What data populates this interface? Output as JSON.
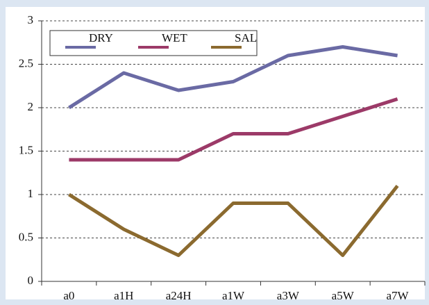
{
  "chart_data": {
    "type": "line",
    "categories": [
      "a0",
      "a1H",
      "a24H",
      "a1W",
      "a3W",
      "a5W",
      "a7W"
    ],
    "series": [
      {
        "name": "DRY",
        "color": "#6a6aa4",
        "values": [
          2.0,
          2.4,
          2.2,
          2.3,
          2.6,
          2.7,
          2.6
        ]
      },
      {
        "name": "WET",
        "color": "#9c3a68",
        "values": [
          1.4,
          1.4,
          1.4,
          1.7,
          1.7,
          1.9,
          2.1
        ]
      },
      {
        "name": "SAL",
        "color": "#8b6a2f",
        "values": [
          1.0,
          0.6,
          0.3,
          0.9,
          0.9,
          0.3,
          1.1
        ]
      }
    ],
    "ylim": [
      0,
      3
    ],
    "yticks": [
      0,
      0.5,
      1,
      1.5,
      2,
      2.5,
      3
    ],
    "grid": true,
    "legend": "upper left"
  }
}
